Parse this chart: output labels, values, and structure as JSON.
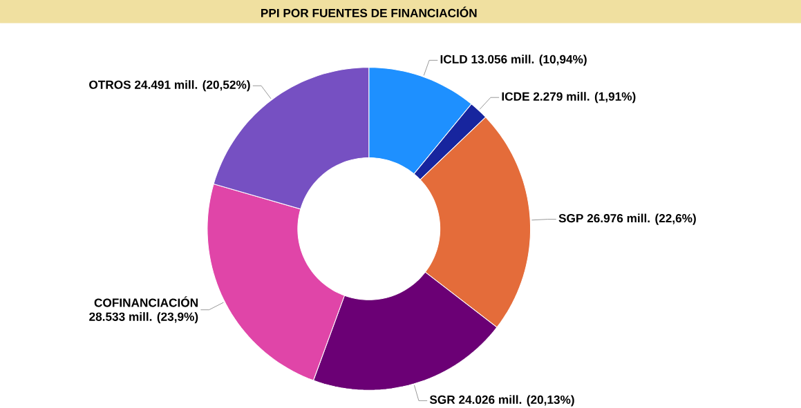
{
  "chart_data": {
    "type": "donut",
    "title": "PPI POR FUENTES DE FINANCIACIÓN",
    "categories": [
      "ICLD",
      "ICDE",
      "SGP",
      "SGR",
      "COFINANCIACIÓN",
      "OTROS"
    ],
    "values": [
      13056,
      2279,
      26976,
      24026,
      28533,
      24491
    ],
    "value_labels": [
      "13.056 mill. (10,94%)",
      "2.279 mill. (1,91%)",
      "26.976 mill. (22,6%)",
      "24.026 mill. (20,13%)",
      "28.533 mill. (23,9%)",
      "24.491 mill. (20,52%)"
    ],
    "colors": [
      "#1e90ff",
      "#17259e",
      "#e46c3a",
      "#6b0075",
      "#e045a8",
      "#7650c2"
    ]
  }
}
